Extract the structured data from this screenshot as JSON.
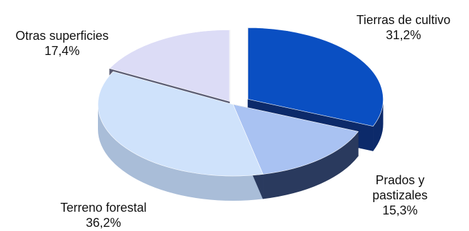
{
  "chart_data": {
    "type": "pie",
    "style": "3d-exploded",
    "title": "",
    "slices": [
      {
        "label": "Tierras de cultivo",
        "value_text": "31,2%",
        "value": 31.2,
        "top_color": "#0a4fc2",
        "side_color": "#0c2a6a"
      },
      {
        "label_lines": [
          "Prados y",
          "pastizales"
        ],
        "label": "Prados y pastizales",
        "value_text": "15,3%",
        "value": 15.3,
        "top_color": "#a9c2f2",
        "side_color": "#2a3a5e"
      },
      {
        "label": "Terreno forestal",
        "value_text": "36,2%",
        "value": 36.2,
        "top_color": "#cfe2fb",
        "side_color": "#a9bdd8"
      },
      {
        "label": "Otras superficies",
        "value_text": "17,4%",
        "value": 17.4,
        "top_color": "#dcdcf6",
        "side_color": "#5b5d74"
      }
    ]
  }
}
